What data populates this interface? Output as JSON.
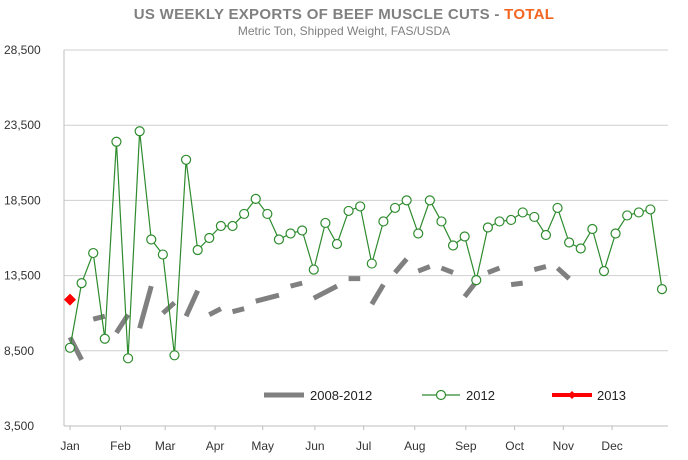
{
  "chart_data": {
    "type": "line",
    "title_prefix": "US WEEKLY EXPORTS OF BEEF MUSCLE CUTS - ",
    "title_highlight": "TOTAL",
    "subtitle": "Metric Ton, Shipped Weight, FAS/USDA",
    "xlabel": "",
    "ylabel": "",
    "ylim": [
      3500,
      28500
    ],
    "yticks": [
      3500,
      8500,
      13500,
      18500,
      23500,
      28500
    ],
    "ytick_labels": [
      "3,500",
      "8,500",
      "13,500",
      "18,500",
      "23,500",
      "28,500"
    ],
    "x_range": [
      1,
      52
    ],
    "months": [
      "Jan",
      "Feb",
      "Mar",
      "Apr",
      "May",
      "Jun",
      "Jul",
      "Aug",
      "Sep",
      "Oct",
      "Nov",
      "Dec"
    ],
    "month_weeks": [
      1,
      5.35,
      9.2,
      13.5,
      17.6,
      22.1,
      26.3,
      30.7,
      35.1,
      39.3,
      43.5,
      47.7
    ],
    "grid": "horizontal",
    "legend_position": "bottom-right",
    "colors": {
      "avg": "#808080",
      "y2012": "#2e8b2e",
      "y2013": "#ff0000",
      "highlight": "#f26522"
    },
    "series": [
      {
        "name": "2008-2012",
        "style": "dashed",
        "segments": [
          {
            "x": [
              1,
              2
            ],
            "y": [
              9400,
              7900
            ]
          },
          {
            "x": [
              3,
              4
            ],
            "y": [
              10600,
              10800
            ]
          },
          {
            "x": [
              5,
              6
            ],
            "y": [
              9700,
              10900
            ]
          },
          {
            "x": [
              7,
              8
            ],
            "y": [
              10000,
              12800
            ]
          },
          {
            "x": [
              9,
              10
            ],
            "y": [
              11000,
              11700
            ]
          },
          {
            "x": [
              11,
              12
            ],
            "y": [
              10800,
              12500
            ]
          },
          {
            "x": [
              13,
              14
            ],
            "y": [
              10900,
              11300
            ]
          },
          {
            "x": [
              15,
              16
            ],
            "y": [
              11100,
              11300
            ]
          },
          {
            "x": [
              17,
              19
            ],
            "y": [
              11800,
              12200
            ]
          },
          {
            "x": [
              20,
              21
            ],
            "y": [
              12800,
              13000
            ]
          },
          {
            "x": [
              22,
              24
            ],
            "y": [
              12000,
              12800
            ]
          },
          {
            "x": [
              25,
              26
            ],
            "y": [
              13300,
              13300
            ]
          },
          {
            "x": [
              27,
              28
            ],
            "y": [
              11600,
              12900
            ]
          },
          {
            "x": [
              29,
              30
            ],
            "y": [
              13700,
              14600
            ]
          },
          {
            "x": [
              31,
              32
            ],
            "y": [
              13800,
              14100
            ]
          },
          {
            "x": [
              33,
              34
            ],
            "y": [
              14000,
              13700
            ]
          },
          {
            "x": [
              35,
              36
            ],
            "y": [
              12100,
              13100
            ]
          },
          {
            "x": [
              37,
              38
            ],
            "y": [
              13700,
              14000
            ]
          },
          {
            "x": [
              39,
              40
            ],
            "y": [
              12900,
              13000
            ]
          },
          {
            "x": [
              41,
              42
            ],
            "y": [
              13900,
              14100
            ]
          },
          {
            "x": [
              43,
              44
            ],
            "y": [
              14000,
              13300
            ]
          }
        ]
      },
      {
        "name": "2012",
        "style": "line-markers",
        "x": [
          1,
          2,
          3,
          4,
          5,
          6,
          7,
          8,
          9,
          10,
          11,
          12,
          13,
          14,
          15,
          16,
          17,
          18,
          19,
          20,
          21,
          22,
          23,
          24,
          25,
          26,
          27,
          28,
          29,
          30,
          31,
          32,
          33,
          34,
          35,
          36,
          37,
          38,
          39,
          40,
          41,
          42,
          43,
          44,
          45,
          46,
          47,
          48,
          49,
          50,
          51,
          52
        ],
        "y": [
          8700,
          13000,
          15000,
          9300,
          22400,
          8000,
          23100,
          15900,
          14900,
          8200,
          21200,
          15200,
          16000,
          16800,
          16800,
          17600,
          18600,
          17600,
          15900,
          16300,
          16500,
          13900,
          17000,
          15600,
          17800,
          18100,
          14300,
          17100,
          18000,
          18500,
          16300,
          18500,
          17100,
          15500,
          16100,
          13200,
          16700,
          17100,
          17200,
          17700,
          17400,
          16200,
          18000,
          15700,
          15300,
          16600,
          13800,
          16300,
          17500,
          17700,
          17900,
          12600
        ]
      },
      {
        "name": "2013",
        "style": "marker",
        "x": [
          1
        ],
        "y": [
          11900
        ]
      }
    ]
  }
}
